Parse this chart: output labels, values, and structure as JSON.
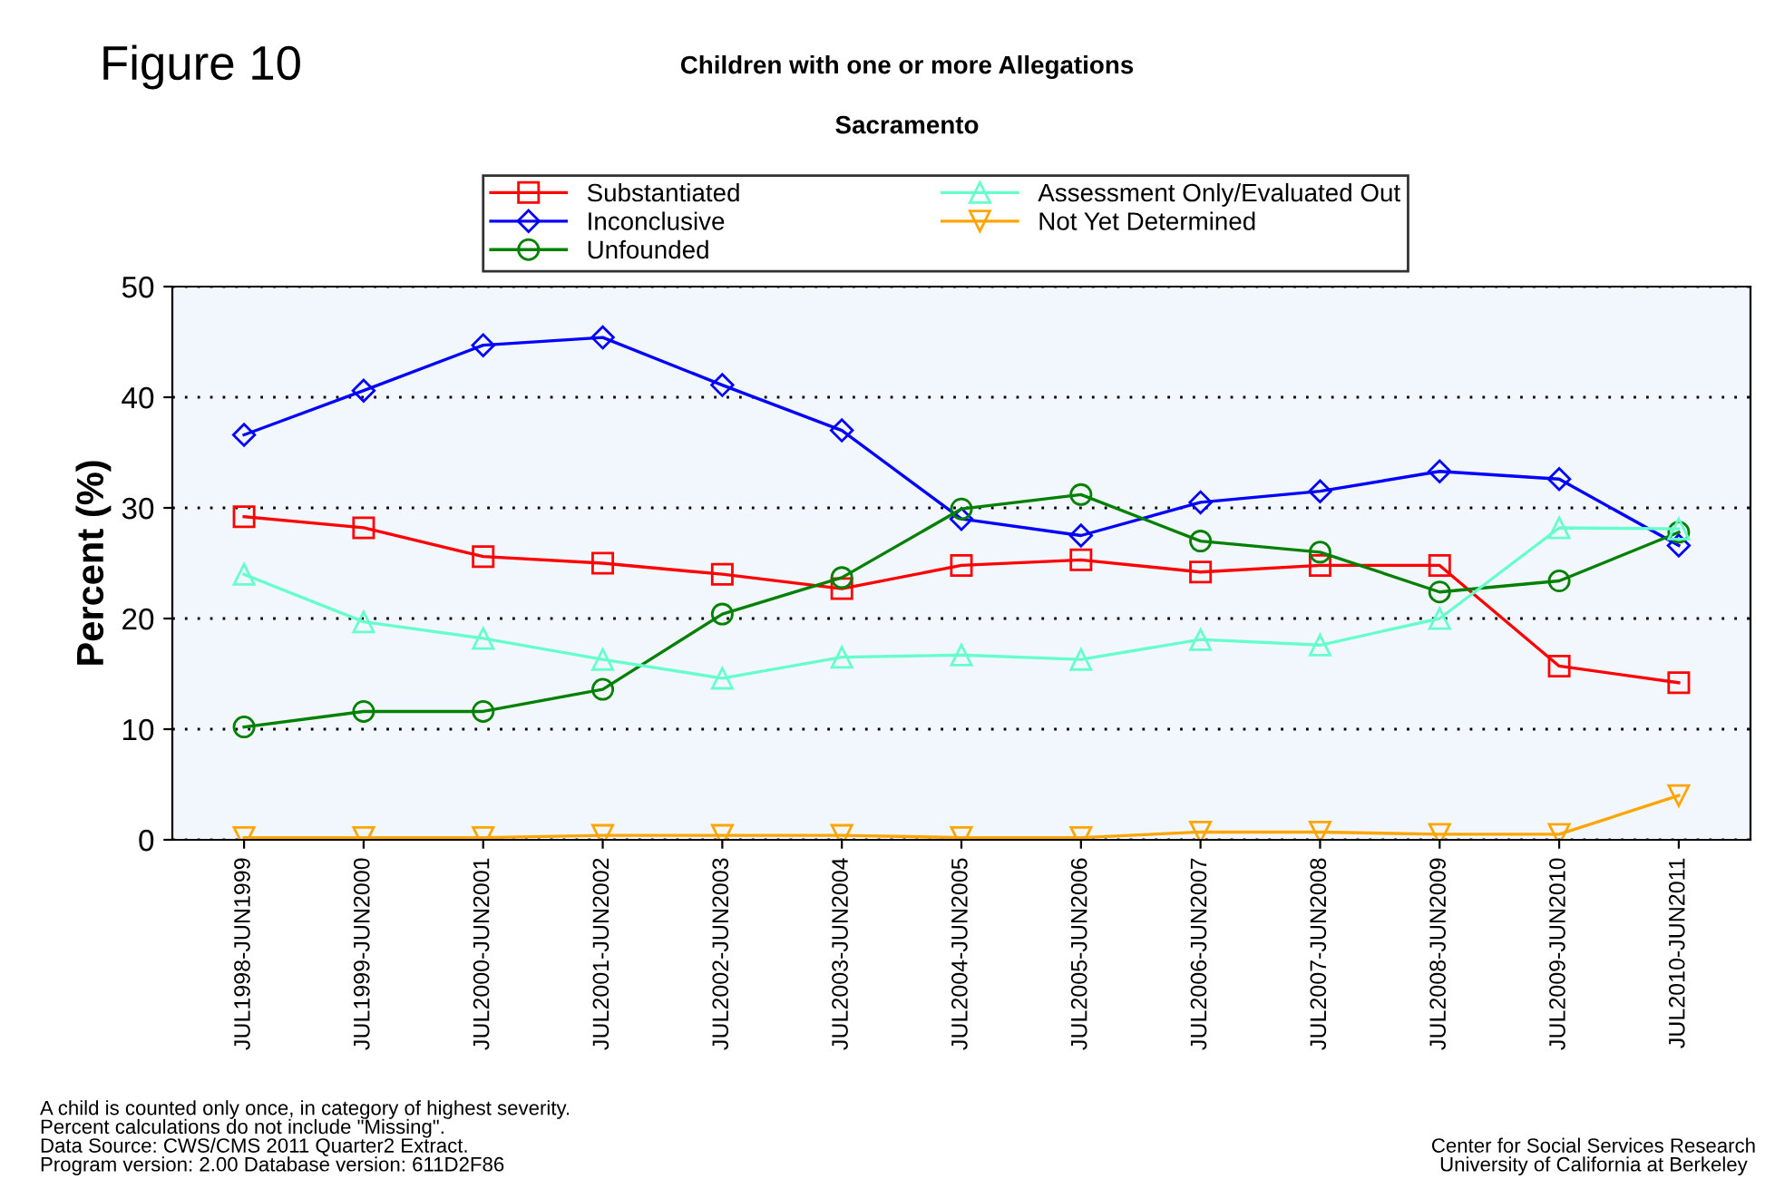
{
  "chart_data": {
    "type": "line",
    "title": "Children with one or more Allegations",
    "subtitle": "Sacramento",
    "ylabel": "Percent (%)",
    "categories": [
      "JUL1998-JUN1999",
      "JUL1999-JUN2000",
      "JUL2000-JUN2001",
      "JUL2001-JUN2002",
      "JUL2002-JUN2003",
      "JUL2003-JUN2004",
      "JUL2004-JUN2005",
      "JUL2005-JUN2006",
      "JUL2006-JUN2007",
      "JUL2007-JUN2008",
      "JUL2008-JUN2009",
      "JUL2009-JUN2010",
      "JUL2010-JUN2011"
    ],
    "series": [
      {
        "name": "Substantiated",
        "color": "#ff0000",
        "marker": "square",
        "values": [
          29.2,
          28.2,
          25.6,
          25.0,
          24.0,
          22.7,
          24.8,
          25.3,
          24.2,
          24.8,
          24.8,
          15.7,
          14.2
        ]
      },
      {
        "name": "Inconclusive",
        "color": "#0000ff",
        "marker": "diamond",
        "values": [
          36.6,
          40.6,
          44.7,
          45.4,
          41.1,
          37.0,
          29.0,
          27.5,
          30.5,
          31.5,
          33.3,
          32.6,
          26.6
        ]
      },
      {
        "name": "Unfounded",
        "color": "#008000",
        "marker": "circle",
        "values": [
          10.2,
          11.6,
          11.6,
          13.6,
          20.4,
          23.7,
          29.9,
          31.2,
          27.0,
          26.0,
          22.4,
          23.4,
          27.8
        ]
      },
      {
        "name": "Assessment Only/Evaluated Out",
        "color": "#66ffcc",
        "marker": "triangle",
        "values": [
          24.0,
          19.7,
          18.2,
          16.3,
          14.6,
          16.5,
          16.7,
          16.3,
          18.1,
          17.6,
          20.0,
          28.2,
          28.1
        ]
      },
      {
        "name": "Not Yet Determined",
        "color": "#ffa500",
        "marker": "triangle_down",
        "values": [
          0.2,
          0.2,
          0.2,
          0.4,
          0.4,
          0.4,
          0.2,
          0.2,
          0.7,
          0.7,
          0.5,
          0.5,
          4.0
        ]
      }
    ],
    "ylim": [
      0,
      50
    ],
    "yticks": [
      0,
      10,
      20,
      30,
      40,
      50
    ],
    "grid": "y",
    "legend": "top",
    "annotations": [
      "Figure 10",
      "A child is counted only once, in category of highest severity.\nPercent calculations do not include \"Missing\".\nData Source: CWS/CMS 2011 Quarter2 Extract.\nProgram version: 2.00 Database version: 611D2F86",
      "Center for Social Services Research\nUniversity of California at Berkeley"
    ]
  }
}
